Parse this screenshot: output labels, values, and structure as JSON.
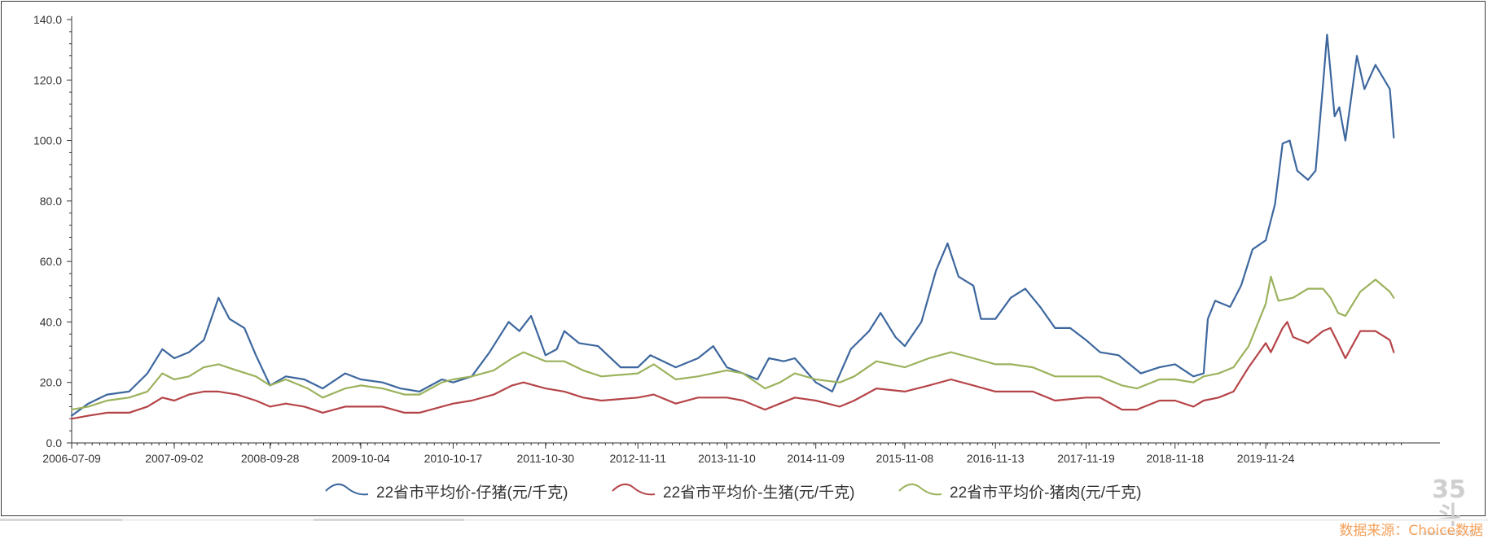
{
  "chart_data": {
    "type": "line",
    "title": "",
    "xlabel": "",
    "ylabel": "",
    "ylim": [
      0,
      140
    ],
    "y_ticks": [
      "0.0",
      "20.0",
      "40.0",
      "60.0",
      "80.0",
      "100.0",
      "120.0",
      "140.0"
    ],
    "x_ticks": [
      "2006-07-09",
      "2007-09-02",
      "2008-09-28",
      "2009-10-04",
      "2010-10-17",
      "2011-10-30",
      "2012-11-11",
      "2013-11-10",
      "2014-11-09",
      "2015-11-08",
      "2016-11-13",
      "2017-11-19",
      "2018-11-18",
      "2019-11-24"
    ],
    "x_range": [
      "2006-07-09",
      "2020-11-01"
    ],
    "grid": false,
    "legend_position": "bottom",
    "series": [
      {
        "name": "22省市平均价-仔猪(元/千克)",
        "color": "#3d679e",
        "points": [
          [
            "2006-07-09",
            9
          ],
          [
            "2006-09-15",
            13
          ],
          [
            "2006-12-01",
            16
          ],
          [
            "2007-03-01",
            17
          ],
          [
            "2007-05-15",
            23
          ],
          [
            "2007-07-15",
            31
          ],
          [
            "2007-09-02",
            28
          ],
          [
            "2007-11-01",
            30
          ],
          [
            "2008-01-01",
            34
          ],
          [
            "2008-03-01",
            48
          ],
          [
            "2008-04-15",
            41
          ],
          [
            "2008-06-15",
            38
          ],
          [
            "2008-08-01",
            29
          ],
          [
            "2008-09-28",
            19
          ],
          [
            "2008-12-01",
            22
          ],
          [
            "2009-02-15",
            21
          ],
          [
            "2009-05-01",
            18
          ],
          [
            "2009-08-01",
            23
          ],
          [
            "2009-10-04",
            21
          ],
          [
            "2010-01-01",
            20
          ],
          [
            "2010-03-15",
            18
          ],
          [
            "2010-06-01",
            17
          ],
          [
            "2010-09-01",
            21
          ],
          [
            "2010-10-17",
            20
          ],
          [
            "2011-01-01",
            22
          ],
          [
            "2011-03-15",
            30
          ],
          [
            "2011-06-01",
            40
          ],
          [
            "2011-07-15",
            37
          ],
          [
            "2011-09-01",
            42
          ],
          [
            "2011-10-30",
            29
          ],
          [
            "2011-12-15",
            31
          ],
          [
            "2012-01-15",
            37
          ],
          [
            "2012-03-15",
            33
          ],
          [
            "2012-06-01",
            32
          ],
          [
            "2012-09-01",
            25
          ],
          [
            "2012-11-11",
            25
          ],
          [
            "2013-01-01",
            29
          ],
          [
            "2013-04-15",
            25
          ],
          [
            "2013-07-15",
            28
          ],
          [
            "2013-09-15",
            32
          ],
          [
            "2013-11-10",
            25
          ],
          [
            "2014-01-15",
            23
          ],
          [
            "2014-03-15",
            21
          ],
          [
            "2014-05-01",
            28
          ],
          [
            "2014-07-01",
            27
          ],
          [
            "2014-08-15",
            28
          ],
          [
            "2014-11-09",
            20
          ],
          [
            "2015-01-15",
            17
          ],
          [
            "2015-04-01",
            31
          ],
          [
            "2015-06-15",
            37
          ],
          [
            "2015-08-01",
            43
          ],
          [
            "2015-10-01",
            35
          ],
          [
            "2015-11-08",
            32
          ],
          [
            "2016-01-15",
            40
          ],
          [
            "2016-03-15",
            57
          ],
          [
            "2016-05-01",
            66
          ],
          [
            "2016-06-15",
            55
          ],
          [
            "2016-08-15",
            52
          ],
          [
            "2016-09-15",
            41
          ],
          [
            "2016-11-13",
            41
          ],
          [
            "2017-01-15",
            48
          ],
          [
            "2017-03-15",
            51
          ],
          [
            "2017-05-15",
            45
          ],
          [
            "2017-07-15",
            38
          ],
          [
            "2017-09-15",
            38
          ],
          [
            "2017-11-19",
            34
          ],
          [
            "2018-01-15",
            30
          ],
          [
            "2018-04-01",
            29
          ],
          [
            "2018-07-01",
            23
          ],
          [
            "2018-09-15",
            25
          ],
          [
            "2018-11-18",
            26
          ],
          [
            "2019-02-01",
            22
          ],
          [
            "2019-03-15",
            23
          ],
          [
            "2019-04-01",
            41
          ],
          [
            "2019-05-01",
            47
          ],
          [
            "2019-07-01",
            45
          ],
          [
            "2019-08-15",
            52
          ],
          [
            "2019-10-01",
            64
          ],
          [
            "2019-11-24",
            67
          ],
          [
            "2020-01-01",
            79
          ],
          [
            "2020-02-01",
            99
          ],
          [
            "2020-03-01",
            100
          ],
          [
            "2020-04-01",
            90
          ],
          [
            "2020-05-15",
            87
          ],
          [
            "2020-06-15",
            90
          ],
          [
            "2020-07-15",
            118
          ],
          [
            "2020-08-01",
            135
          ],
          [
            "2020-09-01",
            108
          ],
          [
            "2020-09-20",
            111
          ],
          [
            "2020-10-15",
            100
          ],
          [
            "2020-12-01",
            128
          ],
          [
            "2021-01-01",
            117
          ],
          [
            "2021-02-15",
            125
          ],
          [
            "2021-04-15",
            117
          ],
          [
            "2021-05-01",
            101
          ]
        ]
      },
      {
        "name": "22省市平均价-生猪(元/千克)",
        "color": "#b54448",
        "points": [
          [
            "2006-07-09",
            8
          ],
          [
            "2006-09-15",
            9
          ],
          [
            "2006-12-01",
            10
          ],
          [
            "2007-03-01",
            10
          ],
          [
            "2007-05-15",
            12
          ],
          [
            "2007-07-15",
            15
          ],
          [
            "2007-09-02",
            14
          ],
          [
            "2007-11-01",
            16
          ],
          [
            "2008-01-01",
            17
          ],
          [
            "2008-03-01",
            17
          ],
          [
            "2008-05-15",
            16
          ],
          [
            "2008-08-01",
            14
          ],
          [
            "2008-09-28",
            12
          ],
          [
            "2008-12-01",
            13
          ],
          [
            "2009-02-15",
            12
          ],
          [
            "2009-05-01",
            10
          ],
          [
            "2009-08-01",
            12
          ],
          [
            "2009-10-04",
            12
          ],
          [
            "2010-01-01",
            12
          ],
          [
            "2010-04-01",
            10
          ],
          [
            "2010-06-01",
            10
          ],
          [
            "2010-09-01",
            12
          ],
          [
            "2010-10-17",
            13
          ],
          [
            "2011-01-01",
            14
          ],
          [
            "2011-04-01",
            16
          ],
          [
            "2011-06-15",
            19
          ],
          [
            "2011-08-01",
            20
          ],
          [
            "2011-10-30",
            18
          ],
          [
            "2012-01-15",
            17
          ],
          [
            "2012-04-01",
            15
          ],
          [
            "2012-06-15",
            14
          ],
          [
            "2012-11-11",
            15
          ],
          [
            "2013-01-15",
            16
          ],
          [
            "2013-04-15",
            13
          ],
          [
            "2013-07-15",
            15
          ],
          [
            "2013-11-10",
            15
          ],
          [
            "2014-01-15",
            14
          ],
          [
            "2014-04-15",
            11
          ],
          [
            "2014-06-15",
            13
          ],
          [
            "2014-08-15",
            15
          ],
          [
            "2014-11-09",
            14
          ],
          [
            "2015-02-15",
            12
          ],
          [
            "2015-04-15",
            14
          ],
          [
            "2015-07-15",
            18
          ],
          [
            "2015-11-08",
            17
          ],
          [
            "2016-02-15",
            19
          ],
          [
            "2016-05-15",
            21
          ],
          [
            "2016-08-15",
            19
          ],
          [
            "2016-11-13",
            17
          ],
          [
            "2017-01-15",
            17
          ],
          [
            "2017-04-15",
            17
          ],
          [
            "2017-07-15",
            14
          ],
          [
            "2017-11-19",
            15
          ],
          [
            "2018-01-15",
            15
          ],
          [
            "2018-04-15",
            11
          ],
          [
            "2018-06-15",
            11
          ],
          [
            "2018-09-15",
            14
          ],
          [
            "2018-11-18",
            14
          ],
          [
            "2019-02-01",
            12
          ],
          [
            "2019-03-15",
            14
          ],
          [
            "2019-05-15",
            15
          ],
          [
            "2019-07-15",
            17
          ],
          [
            "2019-09-15",
            25
          ],
          [
            "2019-11-24",
            33
          ],
          [
            "2019-12-15",
            30
          ],
          [
            "2020-02-01",
            38
          ],
          [
            "2020-02-20",
            40
          ],
          [
            "2020-03-15",
            35
          ],
          [
            "2020-05-15",
            33
          ],
          [
            "2020-07-15",
            37
          ],
          [
            "2020-08-15",
            38
          ],
          [
            "2020-09-15",
            33
          ],
          [
            "2020-10-15",
            28
          ],
          [
            "2020-12-15",
            37
          ],
          [
            "2021-02-15",
            37
          ],
          [
            "2021-04-15",
            34
          ],
          [
            "2021-05-01",
            30
          ]
        ]
      },
      {
        "name": "22省市平均价-猪肉(元/千克)",
        "color": "#9bb25c",
        "points": [
          [
            "2006-07-09",
            11
          ],
          [
            "2006-09-15",
            12
          ],
          [
            "2006-12-01",
            14
          ],
          [
            "2007-03-01",
            15
          ],
          [
            "2007-05-15",
            17
          ],
          [
            "2007-07-15",
            23
          ],
          [
            "2007-09-02",
            21
          ],
          [
            "2007-11-01",
            22
          ],
          [
            "2008-01-01",
            25
          ],
          [
            "2008-03-01",
            26
          ],
          [
            "2008-05-15",
            24
          ],
          [
            "2008-08-01",
            22
          ],
          [
            "2008-09-28",
            19
          ],
          [
            "2008-12-01",
            21
          ],
          [
            "2009-03-01",
            18
          ],
          [
            "2009-05-01",
            15
          ],
          [
            "2009-08-01",
            18
          ],
          [
            "2009-10-04",
            19
          ],
          [
            "2010-01-01",
            18
          ],
          [
            "2010-04-01",
            16
          ],
          [
            "2010-06-01",
            16
          ],
          [
            "2010-09-01",
            20
          ],
          [
            "2010-10-17",
            21
          ],
          [
            "2011-01-01",
            22
          ],
          [
            "2011-04-01",
            24
          ],
          [
            "2011-06-15",
            28
          ],
          [
            "2011-08-01",
            30
          ],
          [
            "2011-10-30",
            27
          ],
          [
            "2012-01-15",
            27
          ],
          [
            "2012-04-01",
            24
          ],
          [
            "2012-06-15",
            22
          ],
          [
            "2012-11-11",
            23
          ],
          [
            "2013-01-15",
            26
          ],
          [
            "2013-04-15",
            21
          ],
          [
            "2013-07-15",
            22
          ],
          [
            "2013-11-10",
            24
          ],
          [
            "2014-01-15",
            23
          ],
          [
            "2014-04-15",
            18
          ],
          [
            "2014-06-15",
            20
          ],
          [
            "2014-08-15",
            23
          ],
          [
            "2014-11-09",
            21
          ],
          [
            "2015-02-15",
            20
          ],
          [
            "2015-04-15",
            22
          ],
          [
            "2015-07-15",
            27
          ],
          [
            "2015-11-08",
            25
          ],
          [
            "2016-02-15",
            28
          ],
          [
            "2016-05-15",
            30
          ],
          [
            "2016-08-15",
            28
          ],
          [
            "2016-11-13",
            26
          ],
          [
            "2017-01-15",
            26
          ],
          [
            "2017-04-15",
            25
          ],
          [
            "2017-07-15",
            22
          ],
          [
            "2017-11-19",
            22
          ],
          [
            "2018-01-15",
            22
          ],
          [
            "2018-04-15",
            19
          ],
          [
            "2018-06-15",
            18
          ],
          [
            "2018-09-15",
            21
          ],
          [
            "2018-11-18",
            21
          ],
          [
            "2019-02-01",
            20
          ],
          [
            "2019-03-15",
            22
          ],
          [
            "2019-05-15",
            23
          ],
          [
            "2019-07-15",
            25
          ],
          [
            "2019-09-15",
            32
          ],
          [
            "2019-11-24",
            46
          ],
          [
            "2019-12-15",
            55
          ],
          [
            "2020-01-15",
            47
          ],
          [
            "2020-03-15",
            48
          ],
          [
            "2020-05-15",
            51
          ],
          [
            "2020-07-15",
            51
          ],
          [
            "2020-08-15",
            48
          ],
          [
            "2020-09-15",
            43
          ],
          [
            "2020-10-15",
            42
          ],
          [
            "2020-12-15",
            50
          ],
          [
            "2021-02-15",
            54
          ],
          [
            "2021-04-15",
            50
          ],
          [
            "2021-05-01",
            48
          ]
        ]
      }
    ]
  },
  "footer": {
    "source": "数据来源：Choice数据",
    "watermark_main": "35斗",
    "watermark_sub": "www.35dou.com"
  }
}
